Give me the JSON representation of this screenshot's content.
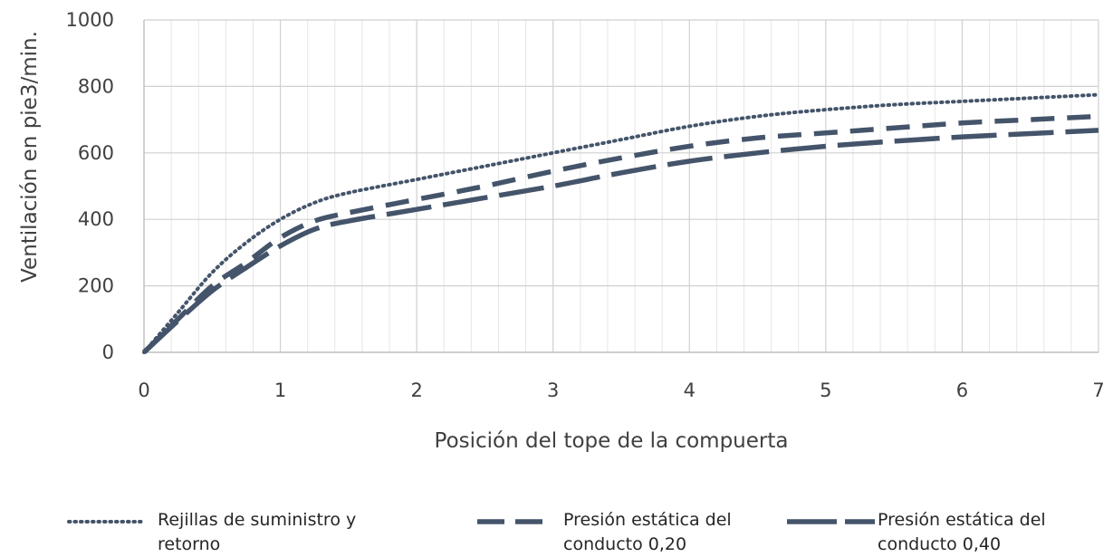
{
  "chart_data": {
    "type": "line",
    "title": "",
    "xlabel": "Posición del tope de la compuerta",
    "ylabel": "Ventilación en pie3/min.",
    "xlim": [
      0,
      7
    ],
    "ylim": [
      0,
      1000
    ],
    "xticks": [
      "0",
      "1",
      "2",
      "3",
      "4",
      "5",
      "6",
      "7"
    ],
    "yticks": [
      "0",
      "200",
      "400",
      "600",
      "800",
      "1000"
    ],
    "x_tick_values": [
      0,
      1,
      2,
      3,
      4,
      5,
      6,
      7
    ],
    "y_tick_values": [
      0,
      200,
      400,
      600,
      800,
      1000
    ],
    "minor_x_step": 0.2,
    "grid": true,
    "legend_position": "bottom",
    "series_color": "#44546a",
    "series": [
      {
        "name": "Rejillas de suministro y retorno",
        "legend_lines": [
          "Rejillas de suministro y",
          "retorno"
        ],
        "style": "dotted",
        "x": [
          0,
          0.25,
          0.5,
          0.75,
          1,
          1.25,
          1.5,
          2,
          2.5,
          3,
          3.5,
          4,
          4.5,
          5,
          5.5,
          6,
          6.5,
          7
        ],
        "y": [
          0,
          120,
          240,
          330,
          400,
          450,
          480,
          520,
          560,
          600,
          640,
          680,
          710,
          730,
          745,
          755,
          765,
          775
        ]
      },
      {
        "name": "Presión estática del conducto 0,20",
        "legend_lines": [
          "Presión estática del",
          "conducto 0,20"
        ],
        "style": "dashed",
        "x": [
          0,
          0.25,
          0.5,
          0.75,
          1,
          1.25,
          1.5,
          2,
          2.5,
          3,
          3.5,
          4,
          4.5,
          5,
          5.5,
          6,
          6.5,
          7
        ],
        "y": [
          0,
          100,
          200,
          270,
          345,
          395,
          420,
          460,
          500,
          545,
          585,
          620,
          645,
          660,
          675,
          690,
          700,
          710
        ]
      },
      {
        "name": "Presión estática del conducto 0,40",
        "legend_lines": [
          "Presión estática del",
          "conducto 0,40"
        ],
        "style": "longdash",
        "x": [
          0,
          0.25,
          0.5,
          0.75,
          1,
          1.25,
          1.5,
          2,
          2.5,
          3,
          3.5,
          4,
          4.5,
          5,
          5.5,
          6,
          6.5,
          7
        ],
        "y": [
          0,
          95,
          185,
          255,
          320,
          370,
          395,
          430,
          465,
          500,
          540,
          575,
          600,
          620,
          635,
          648,
          658,
          668
        ]
      }
    ]
  }
}
